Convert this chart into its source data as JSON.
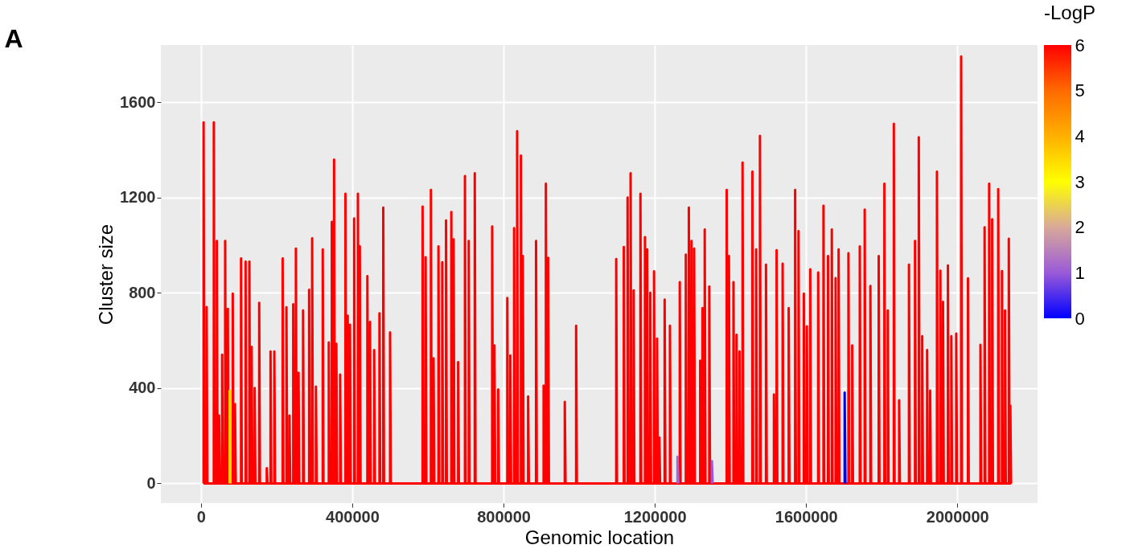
{
  "chart_data": {
    "type": "line",
    "xlabel": "Genomic location",
    "ylabel": "Cluster size",
    "clabel": "-LogP",
    "annotations": [
      "A"
    ],
    "xlim": [
      -106000,
      2212000
    ],
    "ylim": [
      -83,
      1840
    ],
    "xticks": [
      0,
      400000,
      800000,
      1200000,
      1600000,
      2000000
    ],
    "yticks": [
      0,
      400,
      800,
      1200,
      1600
    ],
    "clim": [
      0,
      6
    ],
    "cticks": [
      0,
      1,
      2,
      3,
      4,
      5,
      6
    ],
    "grid": true,
    "line_style": "solid",
    "marker": "none",
    "series": [
      {
        "color": "#ff0000",
        "x": [
          7000,
          7000,
          9000,
          15000,
          15000,
          17000,
          34000,
          34000,
          36000,
          42000,
          42000,
          44000,
          48000,
          48000,
          50000,
          56000,
          56000,
          58000,
          64000,
          64000,
          66000,
          71000,
          71000,
          73000,
          84000,
          84000,
          86000,
          90000,
          90000,
          92000,
          106000,
          106000,
          108000,
          118000,
          118000,
          120000,
          128000,
          128000,
          130000,
          134000,
          134000,
          136000,
          142000,
          142000,
          144000,
          154000,
          154000,
          156000,
          174000,
          174000,
          176000,
          184000,
          184000,
          186000,
          194000,
          194000,
          196000,
          216000,
          216000,
          218000,
          226000,
          226000,
          228000,
          234000,
          234000,
          236000,
          244000,
          244000,
          246000,
          251000,
          251000,
          253000,
          258000,
          258000,
          260000,
          270000,
          270000,
          272000,
          286000,
          286000,
          288000,
          294000,
          294000,
          296000,
          304000,
          304000,
          306000,
          322000,
          322000,
          324000,
          338000,
          338000,
          340000,
          346000,
          346000,
          348000,
          352000,
          352000,
          354000,
          358000,
          358000,
          360000,
          368000,
          368000,
          370000,
          382000,
          382000,
          384000,
          388000,
          388000,
          390000,
          394000,
          394000,
          396000,
          405000,
          405000,
          407000,
          415000,
          415000,
          417000,
          420000,
          420000,
          422000,
          440000,
          440000,
          442000,
          447000,
          447000,
          449000,
          458000,
          458000,
          460000,
          472000,
          472000,
          474000,
          482000,
          482000,
          484000,
          500000,
          500000,
          502000,
          586000,
          586000,
          588000,
          594000,
          594000,
          596000,
          608000,
          608000,
          610000,
          615000,
          615000,
          617000,
          628000,
          628000,
          630000,
          638000,
          638000,
          640000,
          648000,
          648000,
          650000,
          662000,
          662000,
          664000,
          668000,
          668000,
          670000,
          680000,
          680000,
          682000,
          698000,
          698000,
          700000,
          708000,
          708000,
          710000,
          724000,
          724000,
          726000,
          770000,
          770000,
          772000,
          776000,
          776000,
          778000,
          786000,
          786000,
          788000,
          810000,
          810000,
          812000,
          818000,
          818000,
          820000,
          828000,
          828000,
          830000,
          836000,
          836000,
          838000,
          846000,
          846000,
          848000,
          851000,
          851000,
          853000,
          865000,
          865000,
          867000,
          886000,
          886000,
          888000,
          906000,
          906000,
          908000,
          912000,
          912000,
          914000,
          918000,
          918000,
          920000,
          962000,
          962000,
          964000,
          992000,
          992000,
          994000,
          1098000,
          1098000,
          1100000,
          1118000,
          1118000,
          1120000,
          1128000,
          1128000,
          1130000,
          1136000,
          1136000,
          1138000,
          1144000,
          1144000,
          1146000,
          1162000,
          1162000,
          1164000,
          1174000,
          1174000,
          1176000,
          1180000,
          1180000,
          1182000,
          1188000,
          1188000,
          1190000,
          1198000,
          1198000,
          1200000,
          1206000,
          1206000,
          1208000,
          1212000,
          1212000,
          1214000,
          1226000,
          1226000,
          1228000,
          1240000,
          1240000,
          1242000,
          1266000,
          1266000,
          1268000,
          1282000,
          1282000,
          1284000,
          1290000,
          1290000,
          1292000,
          1297000,
          1297000,
          1299000,
          1304000,
          1304000,
          1306000,
          1320000,
          1320000,
          1322000,
          1326000,
          1326000,
          1328000,
          1332000,
          1332000,
          1334000,
          1344000,
          1344000,
          1346000,
          1390000,
          1390000,
          1392000,
          1396000,
          1396000,
          1398000,
          1408000,
          1408000,
          1410000,
          1416000,
          1416000,
          1418000,
          1424000,
          1424000,
          1426000,
          1432000,
          1432000,
          1434000,
          1458000,
          1458000,
          1460000,
          1468000,
          1468000,
          1470000,
          1478000,
          1478000,
          1480000,
          1494000,
          1494000,
          1496000,
          1515000,
          1515000,
          1517000,
          1522000,
          1522000,
          1524000,
          1538000,
          1538000,
          1540000,
          1554000,
          1554000,
          1556000,
          1571000,
          1571000,
          1573000,
          1580000,
          1580000,
          1582000,
          1594000,
          1594000,
          1596000,
          1602000,
          1602000,
          1604000,
          1611000,
          1611000,
          1613000,
          1632000,
          1632000,
          1634000,
          1646000,
          1646000,
          1648000,
          1658000,
          1658000,
          1660000,
          1668000,
          1668000,
          1670000,
          1678000,
          1678000,
          1680000,
          1686000,
          1686000,
          1688000,
          1712000,
          1712000,
          1714000,
          1722000,
          1722000,
          1724000,
          1742000,
          1742000,
          1744000,
          1755000,
          1755000,
          1757000,
          1770000,
          1770000,
          1772000,
          1792000,
          1792000,
          1794000,
          1807000,
          1807000,
          1809000,
          1816000,
          1816000,
          1818000,
          1832000,
          1832000,
          1834000,
          1846000,
          1846000,
          1848000,
          1872000,
          1872000,
          1874000,
          1888000,
          1888000,
          1890000,
          1898000,
          1898000,
          1900000,
          1907000,
          1907000,
          1909000,
          1920000,
          1920000,
          1922000,
          1928000,
          1928000,
          1930000,
          1946000,
          1946000,
          1948000,
          1955000,
          1955000,
          1957000,
          1962000,
          1962000,
          1964000,
          1975000,
          1975000,
          1977000,
          1984000,
          1984000,
          1986000,
          1997000,
          1997000,
          1999000,
          2010000,
          2010000,
          2012000,
          2028000,
          2028000,
          2030000,
          2061000,
          2061000,
          2063000,
          2072000,
          2072000,
          2074000,
          2084000,
          2084000,
          2086000,
          2092000,
          2092000,
          2094000,
          2108000,
          2108000,
          2110000,
          2118000,
          2118000,
          2120000,
          2126000,
          2126000,
          2128000,
          2136000,
          2136000,
          2138000,
          2140000,
          2140000,
          2142000
        ],
        "values": [
          0,
          1515,
          0,
          0,
          740,
          0,
          0,
          1515,
          0,
          0,
          1018,
          0,
          0,
          285,
          0,
          0,
          540,
          0,
          0,
          1018,
          0,
          0,
          733,
          0,
          0,
          797,
          0,
          0,
          333,
          0,
          0,
          944,
          0,
          0,
          931,
          0,
          0,
          931,
          0,
          0,
          573,
          0,
          0,
          400,
          0,
          0,
          758,
          0,
          0,
          64,
          0,
          0,
          554,
          0,
          0,
          554,
          0,
          0,
          944,
          0,
          0,
          739,
          0,
          0,
          285,
          0,
          0,
          752,
          0,
          0,
          986,
          0,
          0,
          464,
          0,
          0,
          726,
          0,
          0,
          813,
          0,
          0,
          1029,
          0,
          0,
          406,
          0,
          0,
          982,
          0,
          0,
          592,
          0,
          0,
          1098,
          0,
          0,
          1359,
          0,
          0,
          586,
          0,
          0,
          457,
          0,
          0,
          1216,
          0,
          0,
          704,
          0,
          0,
          666,
          0,
          0,
          1112,
          0,
          0,
          1216,
          0,
          0,
          995,
          0,
          0,
          870,
          0,
          0,
          678,
          0,
          0,
          560,
          0,
          0,
          714,
          0,
          0,
          1158,
          0,
          0,
          634,
          0,
          0,
          1162,
          0,
          0,
          949,
          0,
          0,
          1232,
          0,
          0,
          525,
          0,
          0,
          995,
          0,
          0,
          928,
          0,
          0,
          1104,
          0,
          0,
          1139,
          0,
          0,
          1024,
          0,
          0,
          509,
          0,
          0,
          1290,
          0,
          0,
          1018,
          0,
          0,
          1302,
          0,
          0,
          1078,
          0,
          0,
          579,
          0,
          0,
          394,
          0,
          0,
          778,
          0,
          0,
          537,
          0,
          0,
          1072,
          0,
          0,
          1478,
          0,
          0,
          1376,
          0,
          0,
          954,
          0,
          0,
          365,
          0,
          0,
          1018,
          0,
          0,
          410,
          0,
          0,
          1258,
          0,
          0,
          947,
          0,
          0,
          342,
          0,
          0,
          662,
          0,
          0,
          942,
          0,
          0,
          992,
          0,
          0,
          1200,
          0,
          0,
          1302,
          0,
          0,
          810,
          0,
          0,
          1216,
          0,
          0,
          1034,
          0,
          0,
          982,
          0,
          0,
          800,
          0,
          0,
          890,
          0,
          0,
          608,
          0,
          0,
          192,
          0,
          0,
          771,
          0,
          0,
          662,
          0,
          0,
          845,
          0,
          0,
          960,
          0,
          0,
          1158,
          0,
          0,
          1018,
          0,
          0,
          986,
          0,
          0,
          515,
          0,
          0,
          736,
          0,
          0,
          1066,
          0,
          0,
          826,
          0,
          0,
          1232,
          0,
          0,
          954,
          0,
          0,
          845,
          0,
          0,
          624,
          0,
          0,
          554,
          0,
          0,
          1347,
          0,
          0,
          1309,
          0,
          0,
          982,
          0,
          0,
          1459,
          0,
          0,
          918,
          0,
          0,
          373,
          0,
          0,
          979,
          0,
          0,
          922,
          0,
          0,
          736,
          0,
          0,
          1232,
          0,
          0,
          1059,
          0,
          0,
          797,
          0,
          0,
          659,
          0,
          0,
          899,
          0,
          0,
          885,
          0,
          0,
          1165,
          0,
          0,
          954,
          0,
          0,
          1066,
          0,
          0,
          862,
          0,
          0,
          982,
          0,
          0,
          966,
          0,
          0,
          579,
          0,
          0,
          995,
          0,
          0,
          1149,
          0,
          0,
          829,
          0,
          0,
          954,
          0,
          0,
          1258,
          0,
          0,
          726,
          0,
          0,
          1509,
          0,
          0,
          349,
          0,
          0,
          918,
          0,
          0,
          1018,
          0,
          0,
          1453,
          0,
          0,
          618,
          0,
          0,
          560,
          0,
          0,
          389,
          0,
          0,
          1309,
          0,
          0,
          893,
          0,
          0,
          762,
          0,
          0,
          915,
          0,
          0,
          618,
          0,
          0,
          629,
          0,
          0,
          1792,
          0,
          0,
          861,
          0,
          0,
          582,
          0,
          0,
          1075,
          0,
          0,
          1258,
          0,
          0,
          1109,
          0,
          0,
          1235,
          0,
          0,
          891,
          0,
          0,
          726,
          0,
          0,
          1027,
          0,
          0,
          326,
          0
        ]
      },
      {
        "color": "#ffd400",
        "x": [
          76000,
          76000,
          78000
        ],
        "values": [
          0,
          389,
          0
        ]
      },
      {
        "color": "#9a6ae0",
        "x": [
          1260000,
          1260000,
          1262000
        ],
        "values": [
          0,
          112,
          0
        ]
      },
      {
        "color": "#9a5ad8",
        "x": [
          1351000,
          1351000,
          1353000
        ],
        "values": [
          0,
          93,
          0
        ]
      },
      {
        "color": "#0000ff",
        "x": [
          1702000,
          1702000,
          1704000
        ],
        "values": [
          0,
          381,
          0
        ]
      }
    ]
  }
}
